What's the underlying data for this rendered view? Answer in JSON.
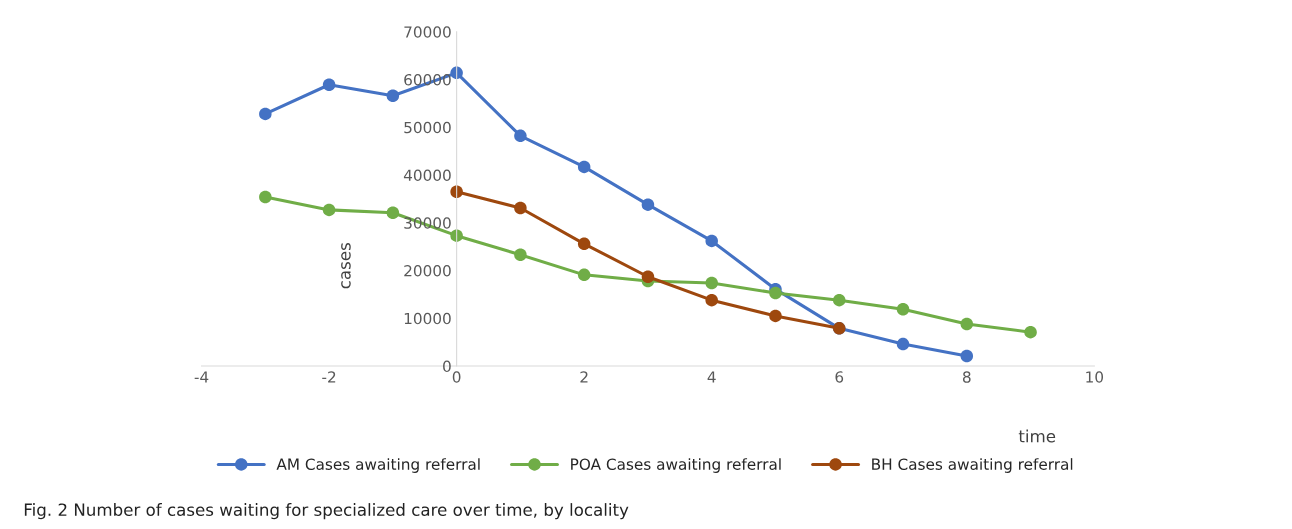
{
  "chart_data": {
    "type": "line",
    "xlabel": "time",
    "ylabel": "cases",
    "xlim": [
      -4,
      10
    ],
    "xticks": [
      -4,
      -2,
      0,
      2,
      4,
      6,
      8,
      10
    ],
    "ylim": [
      0,
      70000
    ],
    "yticks": [
      0,
      10000,
      20000,
      30000,
      40000,
      50000,
      60000,
      70000
    ],
    "grid": false,
    "legend": "bottom",
    "marker": "circle",
    "line_style": "solid",
    "annotations": [
      "Fig. 2 Number of cases waiting for specialized care over time, by locality"
    ],
    "series": [
      {
        "name": "AM Cases awaiting referral",
        "color": "#4472c4",
        "x": [
          -3,
          -2,
          -1,
          0,
          1,
          2,
          3,
          4,
          5,
          6,
          7,
          8
        ],
        "values": [
          52800,
          58900,
          56600,
          61400,
          48200,
          41700,
          33800,
          26200,
          16100,
          7900,
          4600,
          2100
        ]
      },
      {
        "name": "POA Cases awaiting referral",
        "color": "#70ad47",
        "x": [
          -3,
          -2,
          -1,
          0,
          1,
          2,
          3,
          4,
          5,
          6,
          7,
          8,
          9
        ],
        "values": [
          35400,
          32700,
          32100,
          27300,
          23300,
          19100,
          17800,
          17400,
          15300,
          13800,
          11900,
          8800,
          7100
        ]
      },
      {
        "name": "BH Cases awaiting referral",
        "color": "#9e480e",
        "x": [
          0,
          1,
          2,
          3,
          4,
          5,
          6
        ],
        "values": [
          36500,
          33100,
          25600,
          18700,
          13800,
          10500,
          7900
        ]
      }
    ]
  }
}
